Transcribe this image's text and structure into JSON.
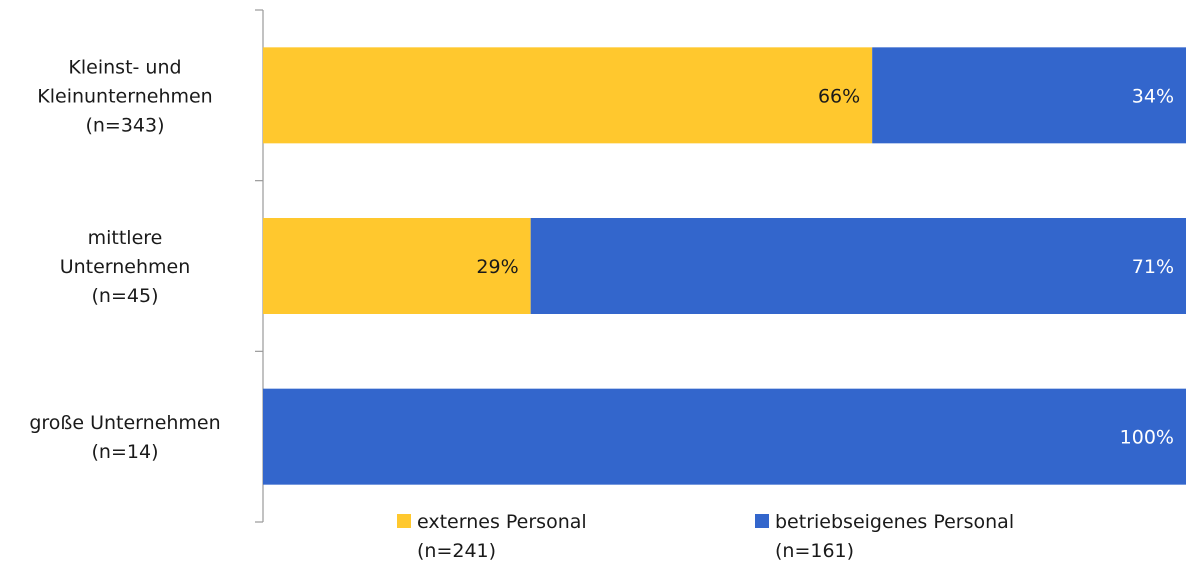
{
  "chart_data": {
    "type": "bar",
    "orientation": "horizontal",
    "stacked": true,
    "percent_stacked": true,
    "categories": [
      [
        "Kleinst- und",
        "Kleinunternehmen",
        "(n=343)"
      ],
      [
        "mittlere",
        "Unternehmen",
        "(n=45)"
      ],
      [
        "große Unternehmen",
        "(n=14)"
      ]
    ],
    "series": [
      {
        "name_lines": [
          "externes Personal",
          "(n=241)"
        ],
        "color": "#FFC82E",
        "values": [
          66,
          29,
          0
        ],
        "labels": [
          "66%",
          "29%",
          ""
        ],
        "label_color": "#1a1a1a"
      },
      {
        "name_lines": [
          "betriebseigenes Personal",
          "(n=161)"
        ],
        "color": "#3366CC",
        "values": [
          34,
          71,
          100
        ],
        "labels": [
          "34%",
          "71%",
          "100%"
        ],
        "label_color": "#ffffff"
      }
    ],
    "xlim": [
      0,
      100
    ],
    "grid": false,
    "legend_position": "bottom"
  }
}
